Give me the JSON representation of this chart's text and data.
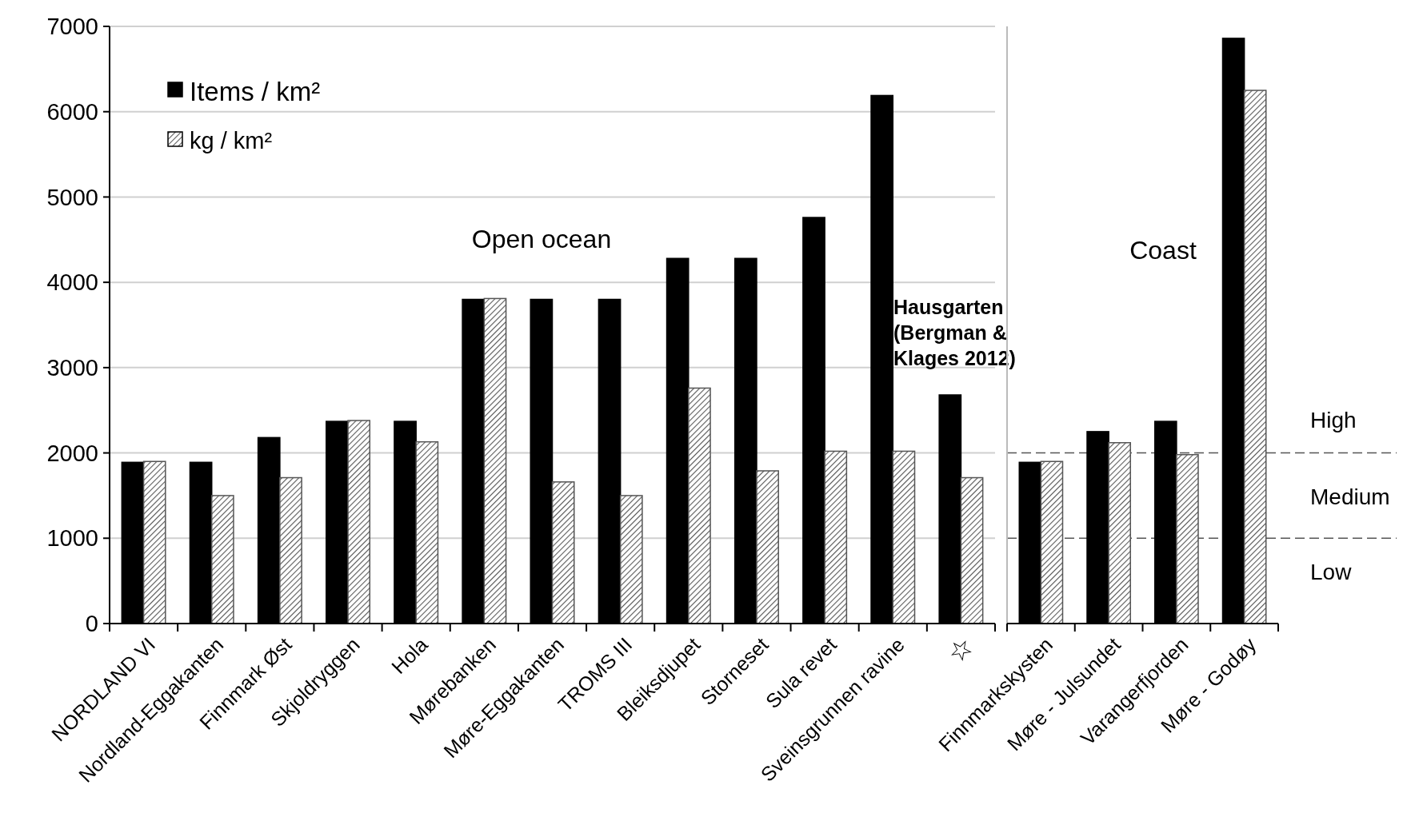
{
  "chart_data": [
    {
      "type": "bar",
      "categories": [
        "NORDLAND VI",
        "Nordland-Eggakanten",
        "Finnmark Øst",
        "Skjoldryggen",
        "Hola",
        "Mørebanken",
        "Møre-Eggakanten",
        "TROMS III",
        "Bleiksdjupet",
        "Storneset",
        "Sula revet",
        "Sveinsgrunnen ravine",
        "☆"
      ],
      "series": [
        {
          "name": "Items / km²",
          "color": "#000000",
          "values": [
            1890,
            1890,
            2180,
            2370,
            2370,
            3800,
            3800,
            3800,
            4280,
            4280,
            4760,
            6190,
            2680
          ]
        },
        {
          "name": "kg / km²",
          "color": "#555555",
          "values": [
            1900,
            1500,
            1710,
            2380,
            2130,
            3810,
            1660,
            1500,
            2760,
            1790,
            2020,
            2020,
            1710
          ]
        }
      ],
      "ylim": [
        0,
        7000
      ],
      "yticks": [
        0,
        1000,
        2000,
        3000,
        4000,
        5000,
        6000,
        7000
      ],
      "grid": "y",
      "legend": "top left",
      "annotations": [
        "Open ocean",
        "Hausgarten\n(Bergman &\nKlages 2012)"
      ]
    },
    {
      "type": "bar",
      "categories": [
        "Finnmarkskysten",
        "Møre - Julsundet",
        "Varangerfjorden",
        "Møre - Godøy"
      ],
      "series": [
        {
          "color": "#000000",
          "values": [
            1890,
            2250,
            2370,
            6860
          ]
        },
        {
          "color": "#555555",
          "values": [
            1900,
            2120,
            1980,
            6250
          ]
        }
      ],
      "ylim": [
        0,
        7000
      ],
      "tick_labels": "x",
      "ref_lines": [
        {
          "axis": "y",
          "value": 2000,
          "line_style": "dashed",
          "color": "#555555"
        },
        {
          "axis": "y",
          "value": 1000,
          "line_style": "dashed",
          "color": "#555555"
        }
      ],
      "annotations": [
        "Coast",
        "High",
        "Medium",
        "Low"
      ]
    }
  ]
}
